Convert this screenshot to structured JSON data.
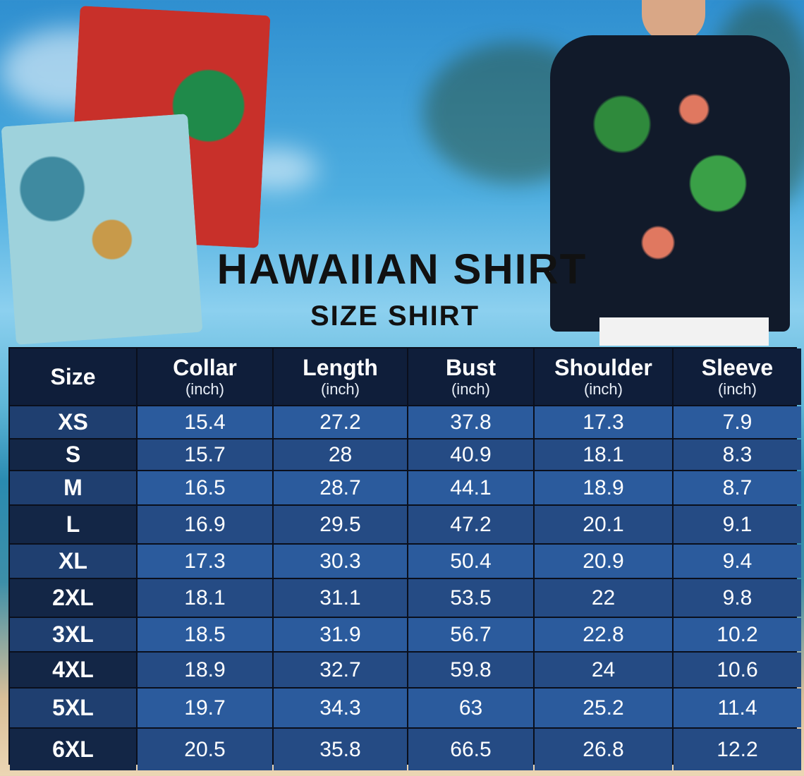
{
  "title": "HAWAIIAN SHIRT",
  "subtitle": "SIZE SHIRT",
  "table": {
    "headers": [
      {
        "label": "Size",
        "unit": ""
      },
      {
        "label": "Collar",
        "unit": "(inch)"
      },
      {
        "label": "Length",
        "unit": "(inch)"
      },
      {
        "label": "Bust",
        "unit": "(inch)"
      },
      {
        "label": "Shoulder",
        "unit": "(inch)"
      },
      {
        "label": "Sleeve",
        "unit": "(inch)"
      }
    ],
    "rows": [
      [
        "XS",
        "15.4",
        "27.2",
        "37.8",
        "17.3",
        "7.9"
      ],
      [
        "S",
        "15.7",
        "28",
        "40.9",
        "18.1",
        "8.3"
      ],
      [
        "M",
        "16.5",
        "28.7",
        "44.1",
        "18.9",
        "8.7"
      ],
      [
        "L",
        "16.9",
        "29.5",
        "47.2",
        "20.1",
        "9.1"
      ],
      [
        "XL",
        "17.3",
        "30.3",
        "50.4",
        "20.9",
        "9.4"
      ],
      [
        "2XL",
        "18.1",
        "31.1",
        "53.5",
        "22",
        "9.8"
      ],
      [
        "3XL",
        "18.5",
        "31.9",
        "56.7",
        "22.8",
        "10.2"
      ],
      [
        "4XL",
        "18.9",
        "32.7",
        "59.8",
        "24",
        "10.6"
      ],
      [
        "5XL",
        "19.7",
        "34.3",
        "63",
        "25.2",
        "11.4"
      ],
      [
        "6XL",
        "20.5",
        "35.8",
        "66.5",
        "26.8",
        "12.2"
      ]
    ]
  },
  "colors": {
    "header": "#0f1e3a",
    "row_light": "#2b5b9d",
    "row_dark": "#254b84"
  }
}
